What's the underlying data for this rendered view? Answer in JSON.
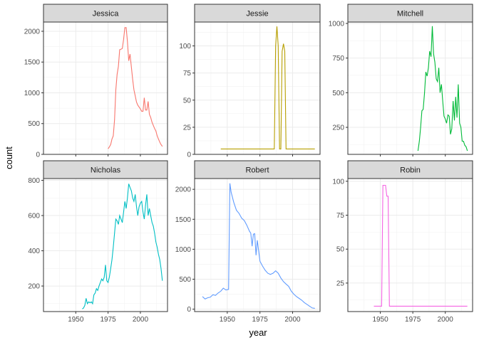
{
  "chart_data": {
    "type": "line",
    "xlabel": "year",
    "ylabel": "count",
    "facet_colors": [
      "#F8766D",
      "#B79F00",
      "#00BA38",
      "#00BFC4",
      "#619CFF",
      "#F564E3"
    ],
    "panels": [
      {
        "name": "Jessica",
        "ylim": [
          0,
          2150
        ],
        "y_ticks": [
          0,
          500,
          1000,
          1500,
          2000
        ],
        "x_tick_labels": false,
        "x": [
          1975,
          1976,
          1977,
          1978,
          1979,
          1980,
          1981,
          1982,
          1983,
          1984,
          1985,
          1986,
          1987,
          1988,
          1989,
          1990,
          1991,
          1992,
          1993,
          1994,
          1995,
          1996,
          1997,
          1998,
          1999,
          2000,
          2001,
          2002,
          2003,
          2004,
          2005,
          2006,
          2007,
          2008,
          2009,
          2010,
          2011,
          2012,
          2013,
          2014,
          2015,
          2016,
          2017
        ],
        "values": [
          90,
          120,
          160,
          250,
          300,
          560,
          1050,
          1300,
          1430,
          1700,
          1710,
          1720,
          1870,
          2060,
          2060,
          1830,
          1520,
          1630,
          1420,
          1220,
          1050,
          950,
          850,
          800,
          770,
          740,
          700,
          700,
          920,
          720,
          720,
          860,
          650,
          600,
          520,
          470,
          420,
          380,
          300,
          250,
          200,
          160,
          130
        ]
      },
      {
        "name": "Jessie",
        "ylim": [
          0,
          122
        ],
        "y_ticks": [
          0,
          25,
          50,
          75,
          100
        ],
        "x_tick_labels": false,
        "x": [
          1945,
          1986,
          1987,
          1988,
          1989,
          1990,
          1991,
          1992,
          1993,
          1994,
          1995,
          2017
        ],
        "values": [
          5,
          5,
          100,
          118,
          100,
          5,
          5,
          95,
          102,
          95,
          5,
          5
        ]
      },
      {
        "name": "Mitchell",
        "ylim": [
          55,
          1010
        ],
        "y_ticks": [
          250,
          500,
          750,
          1000
        ],
        "x_tick_labels": false,
        "x": [
          1979,
          1980,
          1981,
          1982,
          1983,
          1984,
          1985,
          1986,
          1987,
          1988,
          1989,
          1990,
          1991,
          1992,
          1993,
          1994,
          1995,
          1996,
          1997,
          1998,
          1999,
          2000,
          2001,
          2002,
          2003,
          2004,
          2005,
          2006,
          2007,
          2008,
          2009,
          2010,
          2011,
          2012,
          2013,
          2014,
          2015,
          2016,
          2017
        ],
        "values": [
          80,
          150,
          250,
          370,
          380,
          500,
          650,
          620,
          680,
          800,
          760,
          980,
          780,
          720,
          600,
          580,
          680,
          500,
          560,
          440,
          330,
          310,
          280,
          340,
          330,
          200,
          240,
          440,
          300,
          470,
          320,
          560,
          280,
          250,
          150,
          150,
          120,
          110,
          80
        ]
      },
      {
        "name": "Nicholas",
        "ylim": [
          55,
          810
        ],
        "y_ticks": [
          200,
          400,
          600,
          800
        ],
        "x_tick_labels": true,
        "x": [
          1955,
          1956,
          1957,
          1958,
          1959,
          1960,
          1961,
          1962,
          1963,
          1964,
          1965,
          1966,
          1967,
          1968,
          1969,
          1970,
          1971,
          1972,
          1973,
          1974,
          1975,
          1976,
          1977,
          1978,
          1979,
          1980,
          1981,
          1982,
          1983,
          1984,
          1985,
          1986,
          1987,
          1988,
          1989,
          1990,
          1991,
          1992,
          1993,
          1994,
          1995,
          1996,
          1997,
          1998,
          1999,
          2000,
          2001,
          2002,
          2003,
          2004,
          2005,
          2006,
          2007,
          2008,
          2009,
          2010,
          2011,
          2012,
          2013,
          2014,
          2015,
          2016,
          2017
        ],
        "values": [
          70,
          75,
          90,
          130,
          100,
          110,
          105,
          110,
          100,
          150,
          160,
          185,
          175,
          200,
          220,
          240,
          230,
          250,
          320,
          230,
          220,
          250,
          300,
          350,
          420,
          500,
          580,
          570,
          550,
          600,
          580,
          560,
          620,
          680,
          640,
          700,
          780,
          760,
          740,
          700,
          680,
          720,
          650,
          600,
          650,
          670,
          680,
          620,
          580,
          660,
          720,
          600,
          640,
          600,
          560,
          540,
          500,
          450,
          420,
          380,
          350,
          300,
          230
        ]
      },
      {
        "name": "Robert",
        "ylim": [
          -40,
          2180
        ],
        "y_ticks": [
          0,
          500,
          1000,
          1500,
          2000
        ],
        "x_tick_labels": true,
        "x": [
          1931,
          1933,
          1935,
          1937,
          1939,
          1941,
          1943,
          1945,
          1947,
          1949,
          1951,
          1952,
          1953,
          1955,
          1957,
          1959,
          1961,
          1963,
          1965,
          1967,
          1968,
          1969,
          1970,
          1971,
          1972,
          1973,
          1975,
          1977,
          1979,
          1981,
          1983,
          1985,
          1987,
          1989,
          1991,
          1993,
          1995,
          1997,
          1999,
          2001,
          2003,
          2005,
          2007,
          2009,
          2011,
          2013,
          2015,
          2017
        ],
        "values": [
          210,
          170,
          190,
          200,
          240,
          230,
          270,
          300,
          350,
          320,
          330,
          2100,
          1950,
          1780,
          1650,
          1600,
          1520,
          1480,
          1400,
          1300,
          1270,
          1050,
          1250,
          1260,
          900,
          1150,
          800,
          720,
          650,
          600,
          580,
          600,
          640,
          600,
          520,
          460,
          420,
          380,
          300,
          250,
          210,
          180,
          150,
          110,
          80,
          50,
          20,
          15
        ]
      },
      {
        "name": "Robin",
        "ylim": [
          4,
          102
        ],
        "y_ticks": [
          25,
          50,
          75,
          100
        ],
        "x_tick_labels": true,
        "x": [
          1945,
          1950,
          1951,
          1952,
          1953,
          1954,
          1955,
          1956,
          1957,
          2017
        ],
        "values": [
          8,
          8,
          8,
          97,
          97,
          97,
          89,
          89,
          8,
          8
        ]
      }
    ],
    "xlim": [
      1925,
      2021
    ],
    "x_ticks": [
      1950,
      1975,
      2000
    ]
  }
}
